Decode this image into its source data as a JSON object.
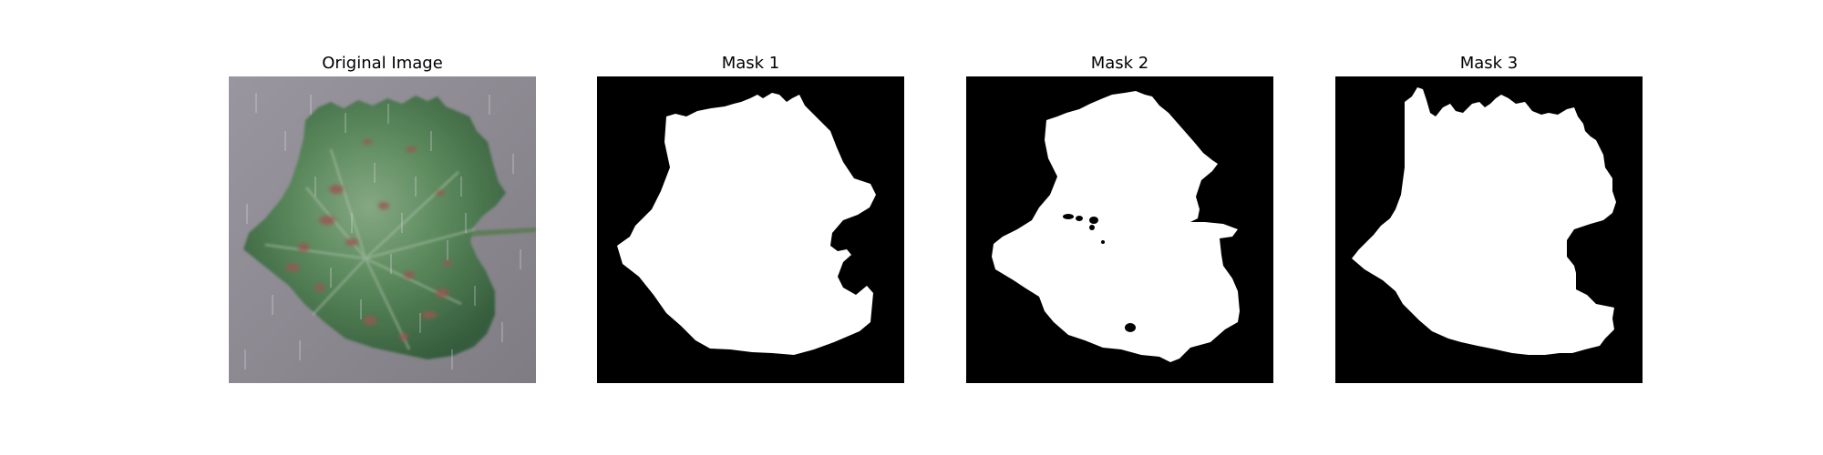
{
  "figure": {
    "panels": [
      {
        "title": "Original Image",
        "kind": "photo"
      },
      {
        "title": "Mask 1",
        "kind": "mask"
      },
      {
        "title": "Mask 2",
        "kind": "mask"
      },
      {
        "title": "Mask 3",
        "kind": "mask"
      }
    ]
  },
  "colors": {
    "mask_background": "#000000",
    "mask_foreground": "#ffffff",
    "photo_background": "#8f8b92",
    "leaf_dark": "#3f6b45",
    "leaf_light": "#7da07d",
    "lesion": "#9a5752",
    "stem": "#5f7d57"
  }
}
